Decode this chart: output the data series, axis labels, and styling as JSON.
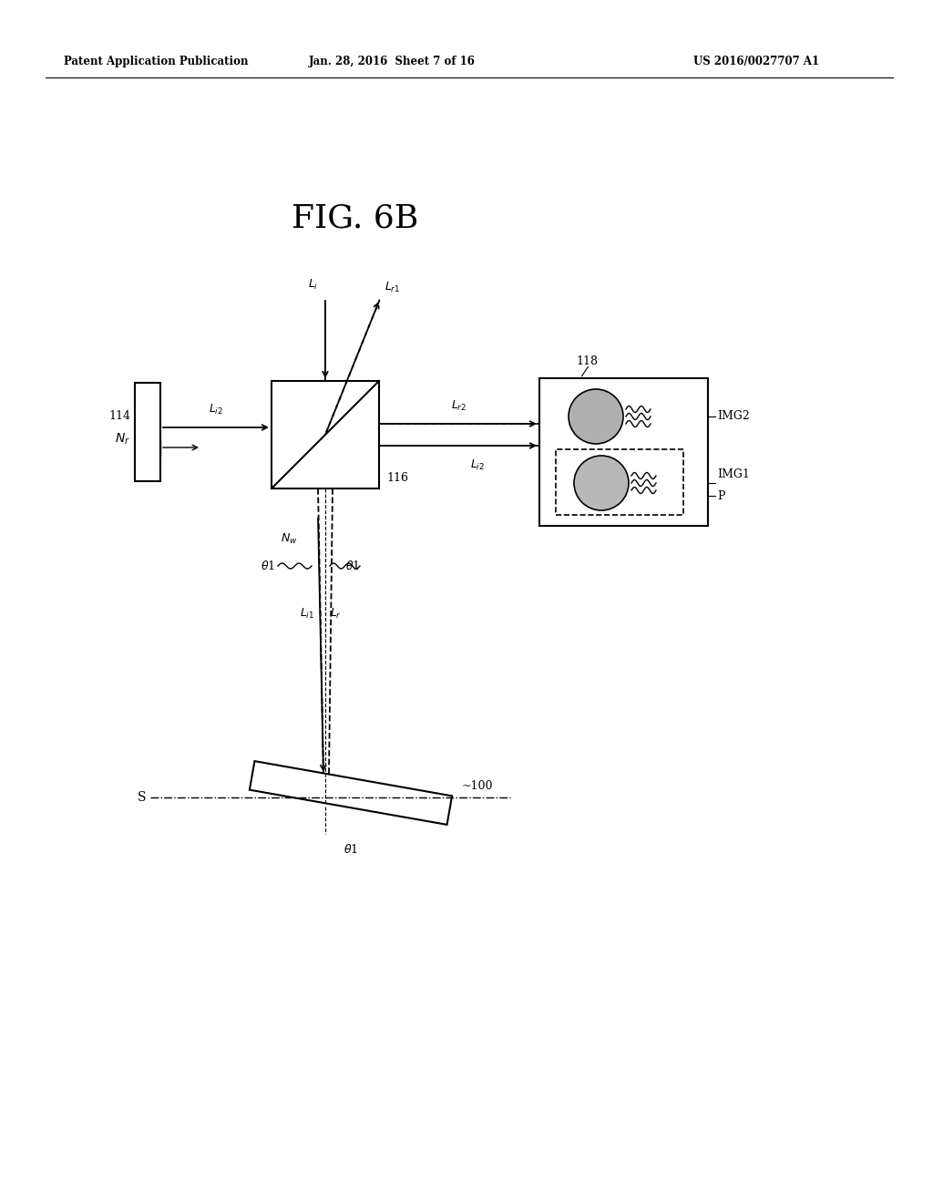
{
  "title": "FIG. 6B",
  "header_left": "Patent Application Publication",
  "header_center": "Jan. 28, 2016  Sheet 7 of 16",
  "header_right": "US 2016/0027707 A1",
  "bg_color": "#ffffff",
  "fg_color": "#000000",
  "fig_width": 10.24,
  "fig_height": 13.2
}
